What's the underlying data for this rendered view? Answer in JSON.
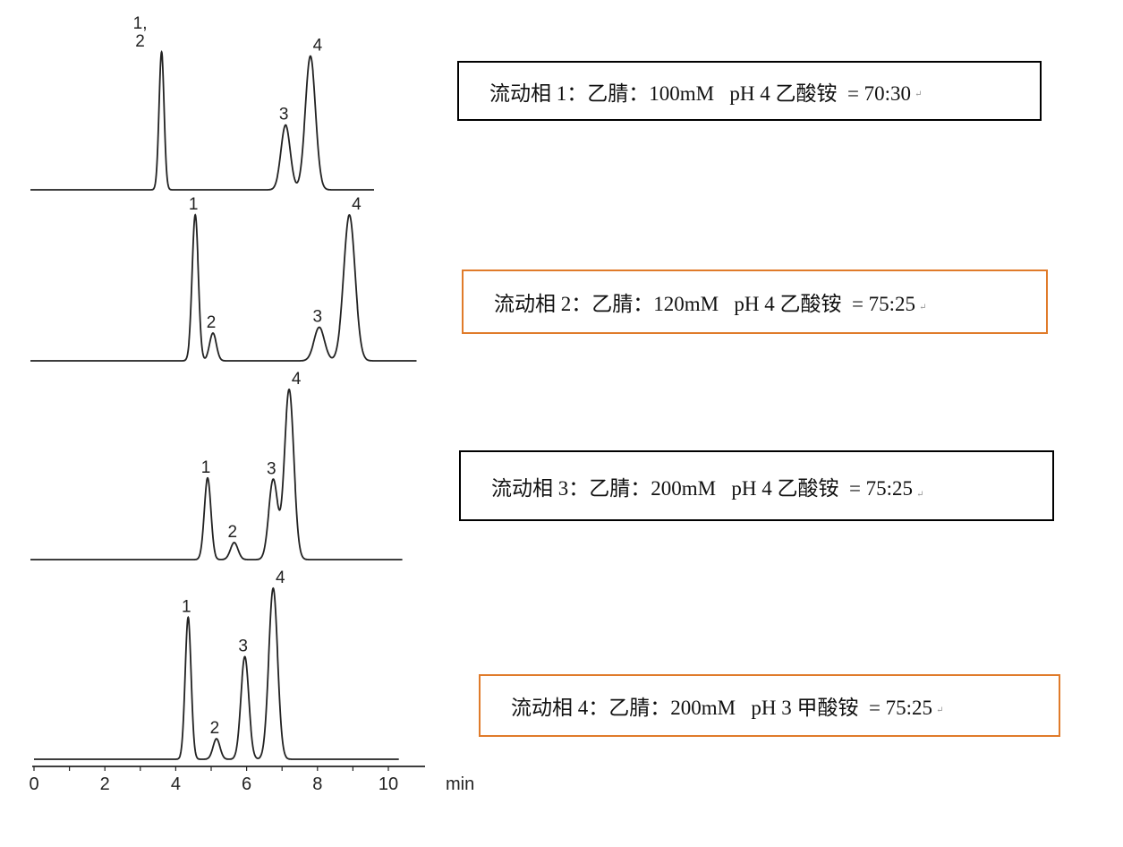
{
  "chart_data": {
    "type": "line",
    "xlabel": "min",
    "xlim": [
      0,
      10
    ],
    "x_ticks": [
      "0",
      "2",
      "4",
      "6",
      "8",
      "10"
    ],
    "grid": false,
    "traces": [
      {
        "x_range": [
          -0.1,
          9.6
        ],
        "peaks": [
          {
            "label": [
              "1,",
              "2"
            ],
            "rt": 3.6,
            "rel_height": 100
          },
          {
            "label": [
              "3"
            ],
            "rt": 7.1,
            "rel_height": 47
          },
          {
            "label": [
              "4"
            ],
            "rt": 7.8,
            "rel_height": 97
          }
        ]
      },
      {
        "x_range": [
          -0.1,
          10.8
        ],
        "peaks": [
          {
            "label": [
              "1"
            ],
            "rt": 4.55,
            "rel_height": 100
          },
          {
            "label": [
              "2"
            ],
            "rt": 5.05,
            "rel_height": 19
          },
          {
            "label": [
              "3"
            ],
            "rt": 8.05,
            "rel_height": 23
          },
          {
            "label": [
              "4"
            ],
            "rt": 8.9,
            "rel_height": 100
          }
        ]
      },
      {
        "x_range": [
          -0.1,
          10.4
        ],
        "peaks": [
          {
            "label": [
              "1"
            ],
            "rt": 4.9,
            "rel_height": 48
          },
          {
            "label": [
              "2"
            ],
            "rt": 5.65,
            "rel_height": 10
          },
          {
            "label": [
              "3"
            ],
            "rt": 6.75,
            "rel_height": 47
          },
          {
            "label": [
              "4"
            ],
            "rt": 7.2,
            "rel_height": 100
          }
        ]
      },
      {
        "x_range": [
          0,
          10.3
        ],
        "peaks": [
          {
            "label": [
              "1"
            ],
            "rt": 4.35,
            "rel_height": 83
          },
          {
            "label": [
              "2"
            ],
            "rt": 5.15,
            "rel_height": 12
          },
          {
            "label": [
              "3"
            ],
            "rt": 5.95,
            "rel_height": 60
          },
          {
            "label": [
              "4"
            ],
            "rt": 6.75,
            "rel_height": 100
          }
        ]
      }
    ]
  },
  "conditions": [
    {
      "text": "流动相 1：乙腈：100mM   pH 4 乙酸铵  = 70:30",
      "border_color": "#000000"
    },
    {
      "text": "流动相 2：乙腈：120mM   pH 4 乙酸铵  = 75:25",
      "border_color": "#e07b2a"
    },
    {
      "text": "流动相 3：乙腈：200mM   pH 4 乙酸铵  = 75:25",
      "border_color": "#000000"
    },
    {
      "text": "流动相 4：乙腈：200mM   pH 3 甲酸铵  = 75:25",
      "border_color": "#e07b2a"
    }
  ],
  "paragraph_mark": "↵"
}
